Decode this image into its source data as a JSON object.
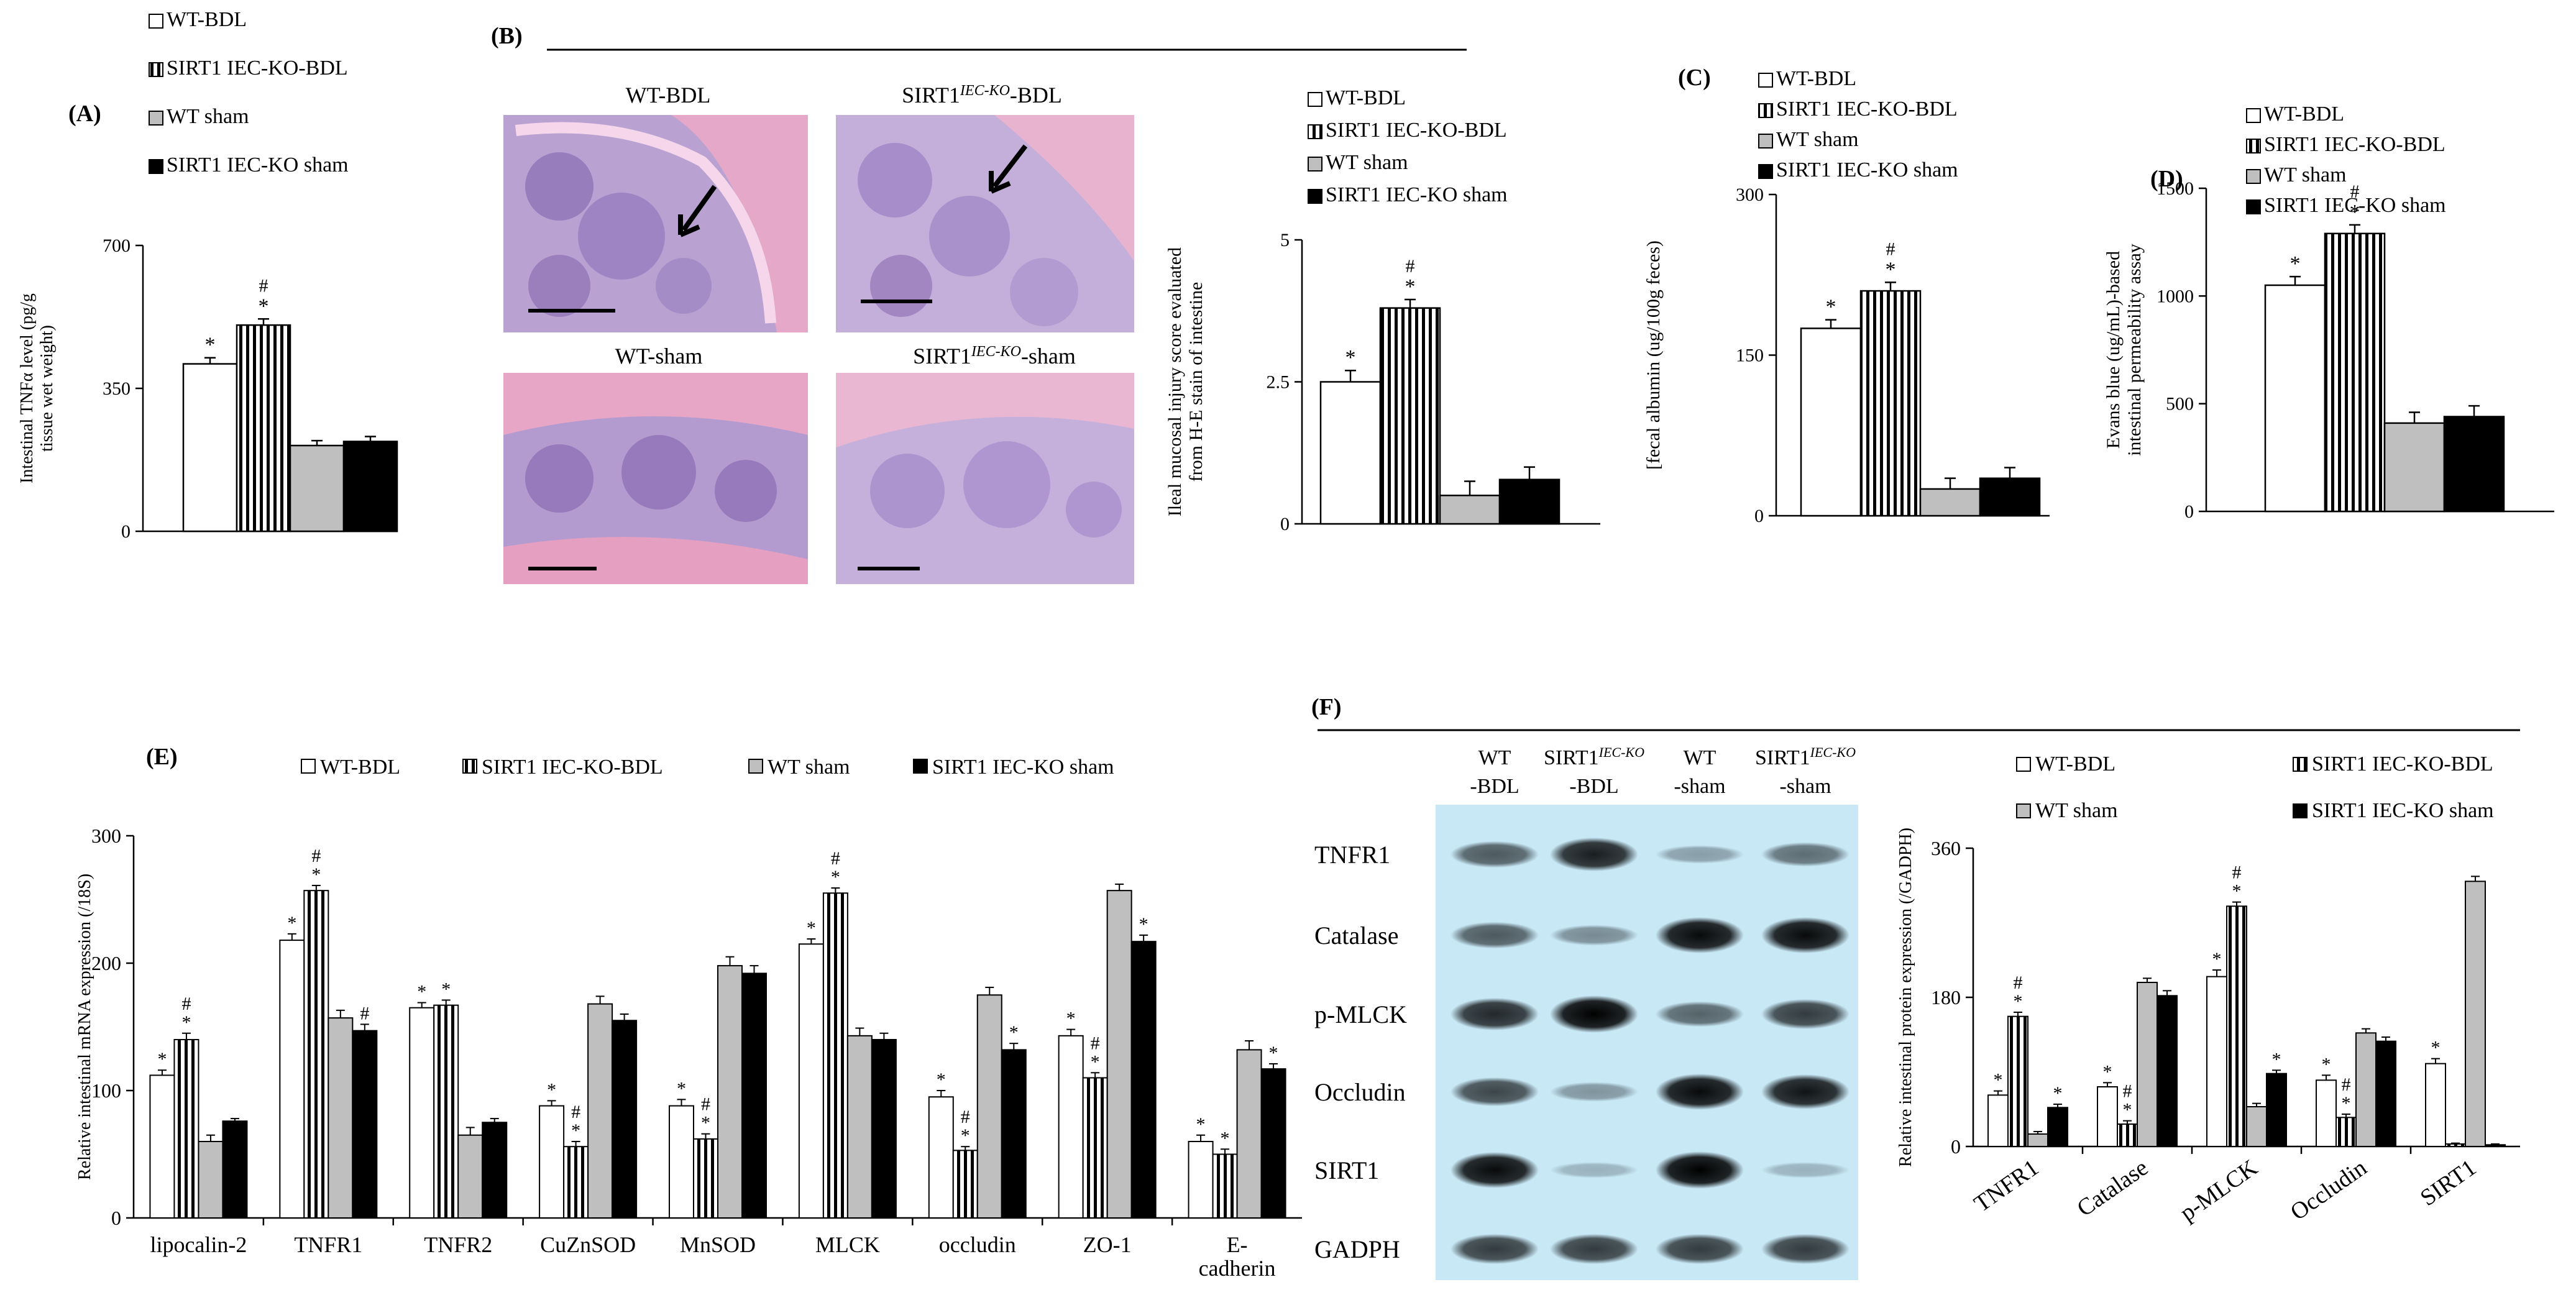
{
  "legend": {
    "wt_bdl": "WT-BDL",
    "ko_bdl": "SIRT1 IEC-KO-BDL",
    "wt_sham": "WT sham",
    "ko_sham": "SIRT1 IEC-KO sham"
  },
  "colors": {
    "wt_bdl": "#ffffff",
    "ko_bdl": "striped-black-white",
    "wt_sham": "#bfbfbf",
    "ko_sham": "#000000"
  },
  "panel_a": {
    "label": "(A)",
    "ylabel_line1": "Intestinal TNFα level (pg/g",
    "ylabel_line2": "tissue wet weight)",
    "ticks": [
      "0",
      "350",
      "700"
    ],
    "marks": [
      "*",
      "#",
      "*"
    ],
    "chart_data": {
      "type": "bar",
      "categories": [
        "WT-BDL",
        "SIRT1 IEC-KO-BDL",
        "WT sham",
        "SIRT1 IEC-KO sham"
      ],
      "values": [
        410,
        505,
        210,
        220
      ],
      "errors": [
        15,
        15,
        12,
        12
      ],
      "ylim": [
        0,
        700
      ]
    }
  },
  "panel_b": {
    "label": "(B)",
    "img_titles": [
      "WT-BDL",
      "SIRT1",
      "IEC-KO",
      "-BDL",
      "WT-sham",
      "SIRT1",
      "IEC-KO",
      "-sham"
    ],
    "ylabel_line1": "Ileal mucosal injury score  evaluated",
    "ylabel_line2": "from H-E stain of intestine",
    "ticks": [
      "0",
      "2.5",
      "5"
    ],
    "marks": [
      "*",
      "#",
      "*"
    ],
    "chart_data": {
      "type": "bar",
      "categories": [
        "WT-BDL",
        "SIRT1 IEC-KO-BDL",
        "WT sham",
        "SIRT1 IEC-KO sham"
      ],
      "values": [
        2.5,
        3.8,
        0.5,
        0.78
      ],
      "errors": [
        0.2,
        0.15,
        0.25,
        0.22
      ],
      "ylim": [
        0,
        5
      ]
    }
  },
  "panel_c": {
    "label": "(C)",
    "ylabel": "[fecal albumin (ug/100g feces)",
    "ticks": [
      "0",
      "150",
      "300"
    ],
    "marks": [
      "*",
      "#",
      "*"
    ],
    "chart_data": {
      "type": "bar",
      "categories": [
        "WT-BDL",
        "SIRT1 IEC-KO-BDL",
        "WT sham",
        "SIRT1 IEC-KO sham"
      ],
      "values": [
        175,
        210,
        25,
        35
      ],
      "errors": [
        8,
        8,
        10,
        10
      ],
      "ylim": [
        0,
        300
      ]
    }
  },
  "panel_d": {
    "label": "(D)",
    "ylabel_line1": "Evans blue (ug/mL)-based",
    "ylabel_line2": "intestinal permeability assay",
    "ticks": [
      "0",
      "500",
      "1000",
      "1500"
    ],
    "marks": [
      "*",
      "#",
      "*"
    ],
    "chart_data": {
      "type": "bar",
      "categories": [
        "WT-BDL",
        "SIRT1 IEC-KO-BDL",
        "WT sham",
        "SIRT1 IEC-KO sham"
      ],
      "values": [
        1050,
        1290,
        410,
        440
      ],
      "errors": [
        40,
        40,
        50,
        50
      ],
      "ylim": [
        0,
        1500
      ]
    }
  },
  "panel_e": {
    "label": "(E)",
    "ylabel": "Relative intestinal mRNA expression (/18S)",
    "ticks": [
      "0",
      "100",
      "200",
      "300"
    ],
    "chart_data": {
      "type": "bar",
      "categories": [
        "lipocalin-2",
        "TNFR1",
        "TNFR2",
        "CuZnSOD",
        "MnSOD",
        "MLCK",
        "occludin",
        "ZO-1",
        "E-cadherin"
      ],
      "category_lines": [
        [
          "lipocalin-2"
        ],
        [
          "TNFR1"
        ],
        [
          "TNFR2"
        ],
        [
          "CuZnSOD"
        ],
        [
          "MnSOD"
        ],
        [
          "MLCK"
        ],
        [
          "occludin"
        ],
        [
          "ZO-1"
        ],
        [
          "E-",
          "cadherin"
        ]
      ],
      "ylim": [
        0,
        300
      ],
      "series": [
        {
          "name": "WT-BDL",
          "values": [
            112,
            218,
            165,
            88,
            88,
            215,
            95,
            143,
            60
          ],
          "errors": [
            4,
            5,
            4,
            4,
            5,
            4,
            5,
            5,
            5
          ],
          "marks": [
            [
              "*"
            ],
            [
              "*"
            ],
            [
              "*"
            ],
            [
              "*"
            ],
            [
              "*"
            ],
            [
              "*"
            ],
            [
              "*"
            ],
            [
              "*"
            ],
            [
              "*"
            ]
          ]
        },
        {
          "name": "SIRT1 IEC-KO-BDL",
          "values": [
            140,
            257,
            167,
            56,
            62,
            255,
            53,
            110,
            50
          ],
          "errors": [
            5,
            4,
            4,
            4,
            4,
            4,
            3,
            4,
            4
          ],
          "marks": [
            [
              "*",
              "#"
            ],
            [
              "*",
              "#"
            ],
            [
              "*"
            ],
            [
              "*",
              "#"
            ],
            [
              "*",
              "#"
            ],
            [
              "*",
              "#"
            ],
            [
              "*",
              "#"
            ],
            [
              "*",
              "#"
            ],
            [
              "*"
            ]
          ]
        },
        {
          "name": "WT sham",
          "values": [
            60,
            157,
            65,
            168,
            198,
            143,
            175,
            257,
            132
          ],
          "errors": [
            5,
            6,
            6,
            6,
            7,
            6,
            6,
            5,
            7
          ],
          "marks": [
            [],
            [],
            [],
            [],
            [],
            [],
            [],
            [],
            []
          ]
        },
        {
          "name": "SIRT1 IEC-KO sham",
          "values": [
            76,
            147,
            75,
            155,
            192,
            140,
            132,
            217,
            117
          ],
          "errors": [
            2,
            5,
            3,
            5,
            6,
            5,
            5,
            5,
            4
          ],
          "marks": [
            [],
            [
              "#"
            ],
            [],
            [],
            [],
            [],
            [
              "*"
            ],
            [
              "*"
            ],
            [
              "*"
            ]
          ]
        }
      ]
    }
  },
  "panel_f": {
    "label": "(F)",
    "lanes": [
      [
        "WT",
        "-BDL"
      ],
      [
        "SIRT1",
        "-BDL"
      ],
      [
        "WT",
        "-sham"
      ],
      [
        "SIRT1",
        "-sham"
      ]
    ],
    "lane_sup": "IEC-KO",
    "proteins": [
      "TNFR1",
      "Catalase",
      "p-MLCK",
      "Occludin",
      "SIRT1",
      "GADPH"
    ],
    "band_intensity": [
      [
        0.55,
        0.85,
        0.2,
        0.45
      ],
      [
        0.55,
        0.3,
        0.95,
        0.95
      ],
      [
        0.8,
        1.0,
        0.5,
        0.7
      ],
      [
        0.65,
        0.25,
        0.95,
        0.9
      ],
      [
        0.95,
        0.1,
        1.0,
        0.1
      ],
      [
        0.7,
        0.7,
        0.7,
        0.7
      ]
    ],
    "ylabel": "Relative intestinal protein expression (/GADPH)",
    "ticks": [
      "0",
      "180",
      "360"
    ],
    "chart_data": {
      "type": "bar",
      "categories": [
        "TNFR1",
        "Catalase",
        "p-MLCK",
        "Occludin",
        "SIRT1"
      ],
      "ylim": [
        0,
        360
      ],
      "series": [
        {
          "name": "WT-BDL",
          "values": [
            62,
            72,
            205,
            80,
            100
          ],
          "errors": [
            5,
            5,
            8,
            6,
            6
          ],
          "marks": [
            [
              "*"
            ],
            [
              "*"
            ],
            [
              "*"
            ],
            [
              "*"
            ],
            [
              "*"
            ]
          ]
        },
        {
          "name": "SIRT1 IEC-KO-BDL",
          "values": [
            157,
            27,
            290,
            35,
            3
          ],
          "errors": [
            5,
            4,
            5,
            4,
            1
          ],
          "marks": [
            [
              "*",
              "#"
            ],
            [
              "*",
              "#"
            ],
            [
              "*",
              "#"
            ],
            [
              "*",
              "#"
            ],
            []
          ]
        },
        {
          "name": "WT sham",
          "values": [
            15,
            198,
            48,
            137,
            320
          ],
          "errors": [
            3,
            5,
            4,
            5,
            6
          ],
          "marks": [
            [],
            [],
            [],
            [],
            []
          ]
        },
        {
          "name": "SIRT1 IEC-KO sham",
          "values": [
            47,
            182,
            88,
            127,
            2
          ],
          "errors": [
            4,
            6,
            4,
            5,
            1
          ],
          "marks": [
            [
              "*"
            ],
            [],
            [
              "*"
            ],
            [],
            []
          ]
        }
      ]
    }
  }
}
